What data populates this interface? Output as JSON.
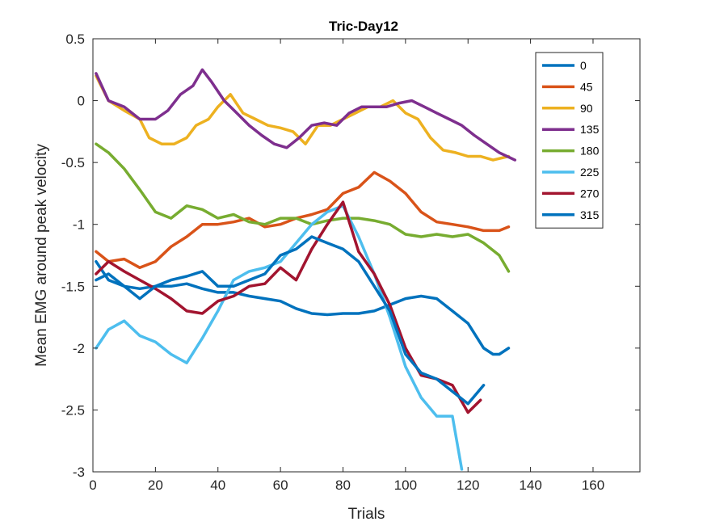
{
  "chart_data": {
    "type": "line",
    "title": "Tric-Day12",
    "xlabel": "Trials",
    "ylabel": "Mean EMG around peak velocity",
    "xlim": [
      0,
      175
    ],
    "ylim": [
      -3,
      0.5
    ],
    "xticks": [
      0,
      20,
      40,
      60,
      80,
      100,
      120,
      140,
      160
    ],
    "yticks": [
      0.5,
      0,
      -0.5,
      -1,
      -1.5,
      -2,
      -2.5,
      -3
    ],
    "xtick_labels": [
      "0",
      "20",
      "40",
      "60",
      "80",
      "100",
      "120",
      "140",
      "160"
    ],
    "ytick_labels": [
      "0.5",
      "0",
      "-0.5",
      "-1",
      "-1.5",
      "-2",
      "-2.5",
      "-3"
    ],
    "grid": false,
    "legend_position": "top-right",
    "series": [
      {
        "name": "0",
        "color": "#0072BD",
        "x": [
          1,
          5,
          10,
          15,
          20,
          25,
          30,
          35,
          40,
          45,
          50,
          55,
          60,
          65,
          70,
          75,
          80,
          85,
          90,
          95,
          100,
          105,
          110,
          115,
          120,
          125,
          128,
          130,
          133
        ],
        "y": [
          -1.3,
          -1.45,
          -1.5,
          -1.52,
          -1.5,
          -1.5,
          -1.48,
          -1.52,
          -1.55,
          -1.55,
          -1.58,
          -1.6,
          -1.62,
          -1.68,
          -1.72,
          -1.73,
          -1.72,
          -1.72,
          -1.7,
          -1.65,
          -1.6,
          -1.58,
          -1.6,
          -1.7,
          -1.8,
          -2.0,
          -2.05,
          -2.05,
          -2.0
        ]
      },
      {
        "name": "45",
        "color": "#D95319",
        "x": [
          1,
          5,
          10,
          15,
          20,
          25,
          30,
          35,
          40,
          45,
          50,
          55,
          60,
          65,
          70,
          75,
          80,
          85,
          90,
          95,
          100,
          105,
          110,
          115,
          120,
          125,
          130,
          133
        ],
        "y": [
          -1.22,
          -1.3,
          -1.28,
          -1.35,
          -1.3,
          -1.18,
          -1.1,
          -1.0,
          -1.0,
          -0.98,
          -0.95,
          -1.02,
          -1.0,
          -0.95,
          -0.92,
          -0.88,
          -0.75,
          -0.7,
          -0.58,
          -0.65,
          -0.75,
          -0.9,
          -0.98,
          -1.0,
          -1.02,
          -1.05,
          -1.05,
          -1.02
        ]
      },
      {
        "name": "90",
        "color": "#EDB120",
        "x": [
          1,
          5,
          10,
          15,
          18,
          22,
          26,
          30,
          33,
          37,
          40,
          44,
          48,
          52,
          56,
          60,
          64,
          68,
          72,
          76,
          80,
          84,
          88,
          92,
          96,
          100,
          104,
          108,
          112,
          116,
          120,
          124,
          128,
          133
        ],
        "y": [
          0.2,
          0.0,
          -0.08,
          -0.15,
          -0.3,
          -0.35,
          -0.35,
          -0.3,
          -0.2,
          -0.15,
          -0.05,
          0.05,
          -0.1,
          -0.15,
          -0.2,
          -0.22,
          -0.25,
          -0.35,
          -0.2,
          -0.2,
          -0.15,
          -0.1,
          -0.05,
          -0.05,
          0.0,
          -0.1,
          -0.15,
          -0.3,
          -0.4,
          -0.42,
          -0.45,
          -0.45,
          -0.48,
          -0.45
        ]
      },
      {
        "name": "135",
        "color": "#7E2F8E",
        "x": [
          1,
          5,
          10,
          15,
          20,
          24,
          28,
          32,
          35,
          38,
          42,
          46,
          50,
          54,
          58,
          62,
          66,
          70,
          74,
          78,
          82,
          86,
          90,
          94,
          98,
          102,
          106,
          110,
          114,
          118,
          122,
          126,
          130,
          135
        ],
        "y": [
          0.22,
          0.0,
          -0.05,
          -0.15,
          -0.15,
          -0.08,
          0.05,
          0.12,
          0.25,
          0.15,
          0.0,
          -0.1,
          -0.2,
          -0.28,
          -0.35,
          -0.38,
          -0.3,
          -0.2,
          -0.18,
          -0.2,
          -0.1,
          -0.05,
          -0.05,
          -0.05,
          -0.02,
          0.0,
          -0.05,
          -0.1,
          -0.15,
          -0.2,
          -0.28,
          -0.35,
          -0.42,
          -0.48
        ]
      },
      {
        "name": "180",
        "color": "#77AC30",
        "x": [
          1,
          5,
          10,
          15,
          20,
          25,
          30,
          35,
          40,
          45,
          50,
          55,
          60,
          65,
          70,
          75,
          80,
          85,
          90,
          95,
          100,
          105,
          110,
          115,
          120,
          125,
          130,
          133
        ],
        "y": [
          -0.35,
          -0.42,
          -0.55,
          -0.72,
          -0.9,
          -0.95,
          -0.85,
          -0.88,
          -0.95,
          -0.92,
          -0.98,
          -1.0,
          -0.95,
          -0.95,
          -1.0,
          -0.97,
          -0.95,
          -0.95,
          -0.97,
          -1.0,
          -1.08,
          -1.1,
          -1.08,
          -1.1,
          -1.08,
          -1.15,
          -1.25,
          -1.38
        ]
      },
      {
        "name": "225",
        "color": "#4DBEEE",
        "x": [
          1,
          5,
          10,
          15,
          20,
          25,
          30,
          35,
          40,
          45,
          50,
          55,
          60,
          65,
          70,
          75,
          80,
          85,
          90,
          95,
          100,
          105,
          110,
          115,
          118
        ],
        "y": [
          -2.0,
          -1.85,
          -1.78,
          -1.9,
          -1.95,
          -2.05,
          -2.12,
          -1.92,
          -1.7,
          -1.45,
          -1.38,
          -1.35,
          -1.3,
          -1.15,
          -1.0,
          -0.9,
          -0.85,
          -1.1,
          -1.4,
          -1.75,
          -2.15,
          -2.4,
          -2.55,
          -2.55,
          -2.98
        ]
      },
      {
        "name": "270",
        "color": "#A2142F",
        "x": [
          1,
          5,
          10,
          15,
          20,
          25,
          30,
          35,
          40,
          45,
          50,
          55,
          60,
          65,
          70,
          75,
          80,
          85,
          90,
          95,
          100,
          105,
          110,
          115,
          120,
          124
        ],
        "y": [
          -1.4,
          -1.3,
          -1.38,
          -1.45,
          -1.52,
          -1.6,
          -1.7,
          -1.72,
          -1.62,
          -1.58,
          -1.5,
          -1.48,
          -1.35,
          -1.45,
          -1.2,
          -1.0,
          -0.82,
          -1.22,
          -1.4,
          -1.65,
          -2.0,
          -2.22,
          -2.25,
          -2.3,
          -2.52,
          -2.42
        ]
      },
      {
        "name": "315",
        "color": "#0072BD",
        "x": [
          1,
          5,
          10,
          15,
          20,
          25,
          30,
          35,
          40,
          45,
          50,
          55,
          60,
          65,
          70,
          75,
          80,
          85,
          90,
          95,
          100,
          105,
          110,
          115,
          120,
          125
        ],
        "y": [
          -1.45,
          -1.4,
          -1.5,
          -1.6,
          -1.5,
          -1.45,
          -1.42,
          -1.38,
          -1.5,
          -1.5,
          -1.45,
          -1.4,
          -1.25,
          -1.2,
          -1.1,
          -1.15,
          -1.2,
          -1.3,
          -1.5,
          -1.7,
          -2.05,
          -2.2,
          -2.25,
          -2.35,
          -2.45,
          -2.3
        ]
      }
    ]
  }
}
